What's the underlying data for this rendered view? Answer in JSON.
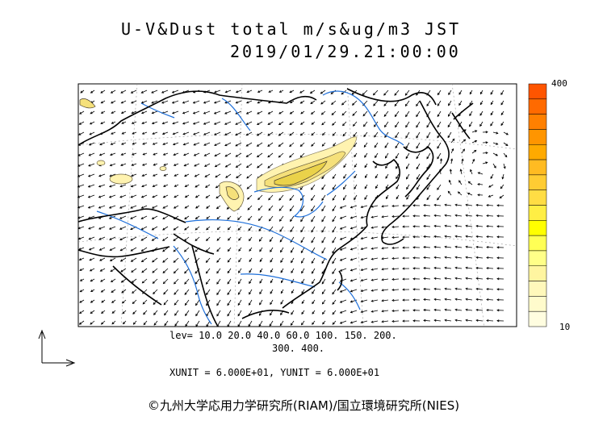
{
  "header": {
    "title": "U-V&Dust total m/s&ug/m3 JST",
    "datetime": "2019/01/29.21:00:00"
  },
  "colorbar": {
    "max_label": "400",
    "min_label": "10",
    "colors": [
      "#ff5500",
      "#ff6a00",
      "#ff8000",
      "#ff9500",
      "#ffaa00",
      "#ffbb22",
      "#ffcc33",
      "#ffdd44",
      "#ffee44",
      "#ffff00",
      "#ffff55",
      "#ffff88",
      "#fff5a0",
      "#fff8bb",
      "#fffbcc",
      "#fffde0"
    ]
  },
  "footer": {
    "levels_line1": "lev= 10.0 20.0 40.0 60.0 100. 150. 200.",
    "levels_line2": "300. 400.",
    "units": "XUNIT = 6.000E+01, YUNIT = 6.000E+01",
    "copyright": "©九州大学応用力学研究所(RIAM)/国立環境研究所(NIES)"
  },
  "colors": {
    "coast": "#000000",
    "river": "#1e6fd9",
    "dust_light": "#fff3b0",
    "dust_mid": "#f5e07a",
    "dust_strong": "#ead24a"
  }
}
